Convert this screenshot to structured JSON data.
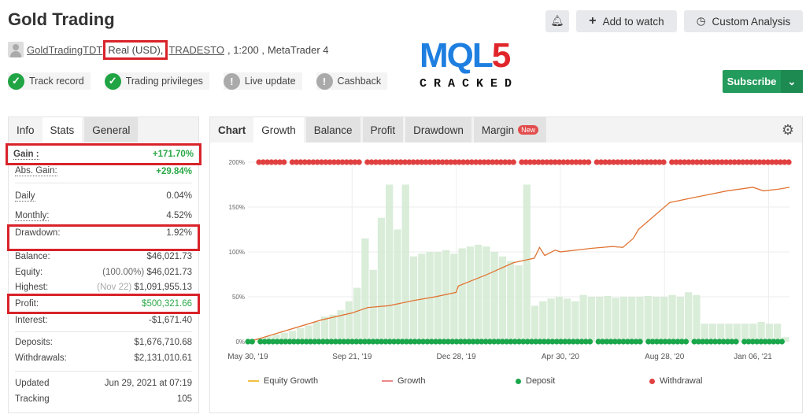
{
  "header": {
    "title": "Gold Trading",
    "author": "GoldTradingTDT",
    "account_type": "Real (USD),",
    "broker": "TRADESTO",
    "leverage": ", 1:200 ,",
    "platform": "MetaTrader 4"
  },
  "badges": [
    {
      "label": "Track record",
      "icon": "check-icon",
      "color": "#20a444"
    },
    {
      "label": "Trading privileges",
      "icon": "check-icon",
      "color": "#20a444"
    },
    {
      "label": "Live update",
      "icon": "exclamation-icon",
      "color": "#aaaaaa"
    },
    {
      "label": "Cashback",
      "icon": "exclamation-icon",
      "color": "#aaaaaa"
    }
  ],
  "actions": {
    "bell": "bell-icon",
    "add_watch": "Add to watch",
    "custom_analysis": "Custom Analysis",
    "subscribe": "Subscribe"
  },
  "logo": {
    "text": "MQL5",
    "sub": "CRACKED"
  },
  "stats": {
    "tabs": [
      "Info",
      "Stats",
      "General"
    ],
    "gain": {
      "label": "Gain :",
      "value": "+171.70%"
    },
    "abs_gain": {
      "label": "Abs. Gain:",
      "value": "+29.84%"
    },
    "daily": {
      "label": "Daily",
      "value": "0.04%"
    },
    "monthly": {
      "label": "Monthly:",
      "value": "4.52%"
    },
    "drawdown": {
      "label": "Drawdown:",
      "value": "1.92%"
    },
    "balance": {
      "label": "Balance:",
      "value": "$46,021.73"
    },
    "equity": {
      "label": "Equity:",
      "note": "(100.00%)",
      "value": "$46,021.73"
    },
    "highest": {
      "label": "Highest:",
      "note": "(Nov 22)",
      "value": "$1,091,955.13"
    },
    "profit": {
      "label": "Profit:",
      "value": "$500,321.66"
    },
    "interest": {
      "label": "Interest:",
      "value": "-$1,671.40"
    },
    "deposits": {
      "label": "Deposits:",
      "value": "$1,676,710.68"
    },
    "withdrawals": {
      "label": "Withdrawals:",
      "value": "$2,131,010.61"
    },
    "updated": {
      "label": "Updated",
      "value": "Jun 29, 2021 at 07:19"
    },
    "tracking": {
      "label": "Tracking",
      "value": "105"
    }
  },
  "chart_tabs": {
    "label": "Chart",
    "tabs": [
      "Growth",
      "Balance",
      "Profit",
      "Drawdown",
      "Margin"
    ],
    "new_badge": "New"
  },
  "chart_data": {
    "type": "line",
    "y_ticks": [
      "0%",
      "50%",
      "100%",
      "150%",
      "200%"
    ],
    "ylim": [
      0,
      200
    ],
    "x_ticks": [
      "May 30, '19",
      "Sep 21, '19",
      "Dec 28, '19",
      "Apr 30, '20",
      "Aug 28, '20",
      "Jan 06, '21"
    ],
    "grid": true,
    "legend_position": "bottom",
    "legend": [
      "Equity Growth",
      "Growth",
      "Deposit",
      "Withdrawal"
    ],
    "colors": {
      "equity": "#f0c040",
      "growth": "#e0703a",
      "deposit": "#1aa64a",
      "withdrawal": "#e04040",
      "bars": "#cfe8cf"
    },
    "growth": [
      [
        0,
        0
      ],
      [
        0.1,
        3
      ],
      [
        0.3,
        10
      ],
      [
        0.5,
        17
      ],
      [
        0.7,
        24
      ],
      [
        1.0,
        32
      ],
      [
        1.15,
        38
      ],
      [
        1.35,
        40
      ],
      [
        1.6,
        46
      ],
      [
        1.8,
        50
      ],
      [
        2.0,
        55
      ],
      [
        2.02,
        62
      ],
      [
        2.3,
        75
      ],
      [
        2.55,
        88
      ],
      [
        2.75,
        93
      ],
      [
        2.8,
        105
      ],
      [
        2.85,
        96
      ],
      [
        2.95,
        102
      ],
      [
        3.0,
        100
      ],
      [
        3.3,
        104
      ],
      [
        3.5,
        106
      ],
      [
        3.6,
        105
      ],
      [
        3.7,
        115
      ],
      [
        3.75,
        125
      ],
      [
        3.95,
        145
      ],
      [
        4.05,
        155
      ],
      [
        4.3,
        161
      ],
      [
        4.6,
        168
      ],
      [
        4.85,
        172
      ],
      [
        4.95,
        168
      ],
      [
        5.1,
        170
      ],
      [
        5.2,
        172
      ]
    ],
    "bars": [
      2,
      4,
      6,
      8,
      10,
      12,
      15,
      18,
      22,
      28,
      30,
      35,
      45,
      60,
      115,
      80,
      138,
      175,
      125,
      175,
      95,
      98,
      100,
      100,
      102,
      98,
      104,
      106,
      108,
      106,
      100,
      95,
      90,
      85,
      175,
      40,
      45,
      48,
      50,
      48,
      45,
      52,
      50,
      50,
      51,
      49,
      50,
      50,
      50,
      51,
      50,
      50,
      52,
      50,
      55,
      52,
      20,
      20,
      20,
      20,
      20,
      20,
      20,
      22,
      20,
      20,
      5
    ]
  }
}
